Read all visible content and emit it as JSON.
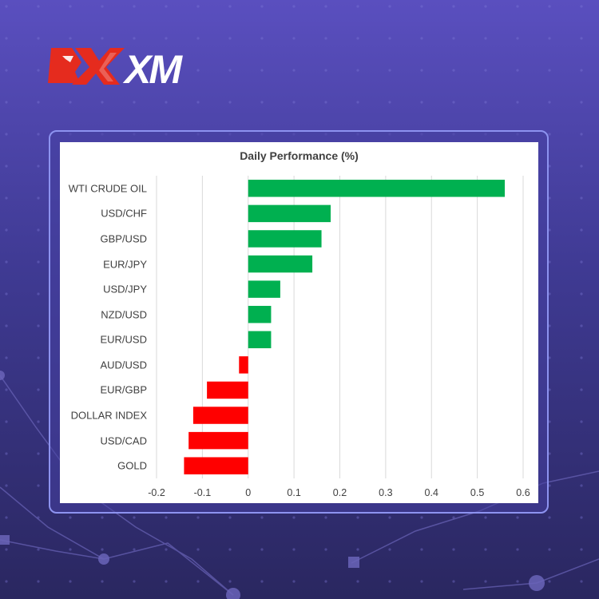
{
  "brand": {
    "name": "XM",
    "accent_red": "#e52b1e"
  },
  "colors": {
    "positive": "#00b050",
    "negative": "#ff0000"
  },
  "chart_data": {
    "type": "bar",
    "orientation": "horizontal",
    "title": "Daily Performance (%)",
    "categories": [
      "WTI CRUDE OIL",
      "USD/CHF",
      "GBP/USD",
      "EUR/JPY",
      "USD/JPY",
      "NZD/USD",
      "EUR/USD",
      "AUD/USD",
      "EUR/GBP",
      "DOLLAR INDEX",
      "USD/CAD",
      "GOLD"
    ],
    "values": [
      0.56,
      0.18,
      0.16,
      0.14,
      0.07,
      0.05,
      0.05,
      -0.02,
      -0.09,
      -0.12,
      -0.13,
      -0.14
    ],
    "xlim": [
      -0.2,
      0.6
    ],
    "xticks": [
      "-0.2",
      "-0.1",
      "0",
      "0.1",
      "0.2",
      "0.3",
      "0.4",
      "0.5",
      "0.6"
    ],
    "grid": "vertical",
    "legend": "none"
  }
}
